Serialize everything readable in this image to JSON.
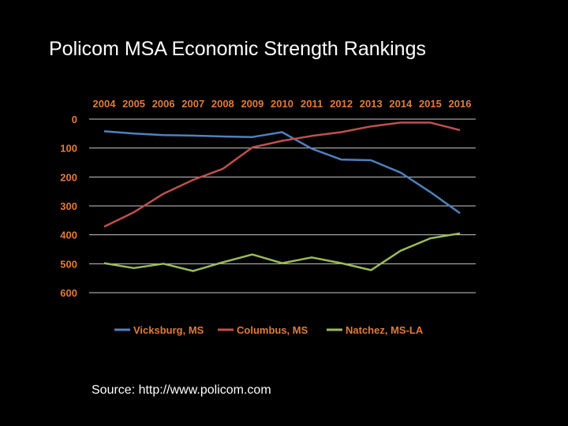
{
  "slide": {
    "title": "Policom MSA Economic Strength Rankings",
    "source": "Source: http://www.policom.com"
  },
  "chart_data": {
    "type": "line",
    "title": "",
    "xlabel": "",
    "ylabel": "",
    "x": [
      "2004",
      "2005",
      "2006",
      "2007",
      "2008",
      "2009",
      "2010",
      "2011",
      "2012",
      "2013",
      "2014",
      "2015",
      "2016"
    ],
    "y_ticks": [
      "0",
      "100",
      "200",
      "300",
      "400",
      "500",
      "600"
    ],
    "ylim": [
      0,
      600
    ],
    "y_inverted": true,
    "grid": true,
    "x_axis_position": "top",
    "legend_position": "bottom",
    "colors": {
      "text": "#e07b3c",
      "grid": "#c8c8c8"
    },
    "series": [
      {
        "name": "Vicksburg, MS",
        "color": "#4f81bd",
        "values": [
          42,
          50,
          55,
          57,
          60,
          62,
          45,
          102,
          140,
          142,
          185,
          252,
          325
        ]
      },
      {
        "name": "Columbus, MS",
        "color": "#c0504d",
        "values": [
          372,
          322,
          258,
          210,
          172,
          98,
          75,
          58,
          45,
          25,
          12,
          12,
          38
        ]
      },
      {
        "name": "Natchez, MS-LA",
        "color": "#9bbb59",
        "values": [
          498,
          515,
          500,
          525,
          495,
          468,
          498,
          478,
          498,
          522,
          455,
          412,
          395
        ]
      }
    ]
  }
}
